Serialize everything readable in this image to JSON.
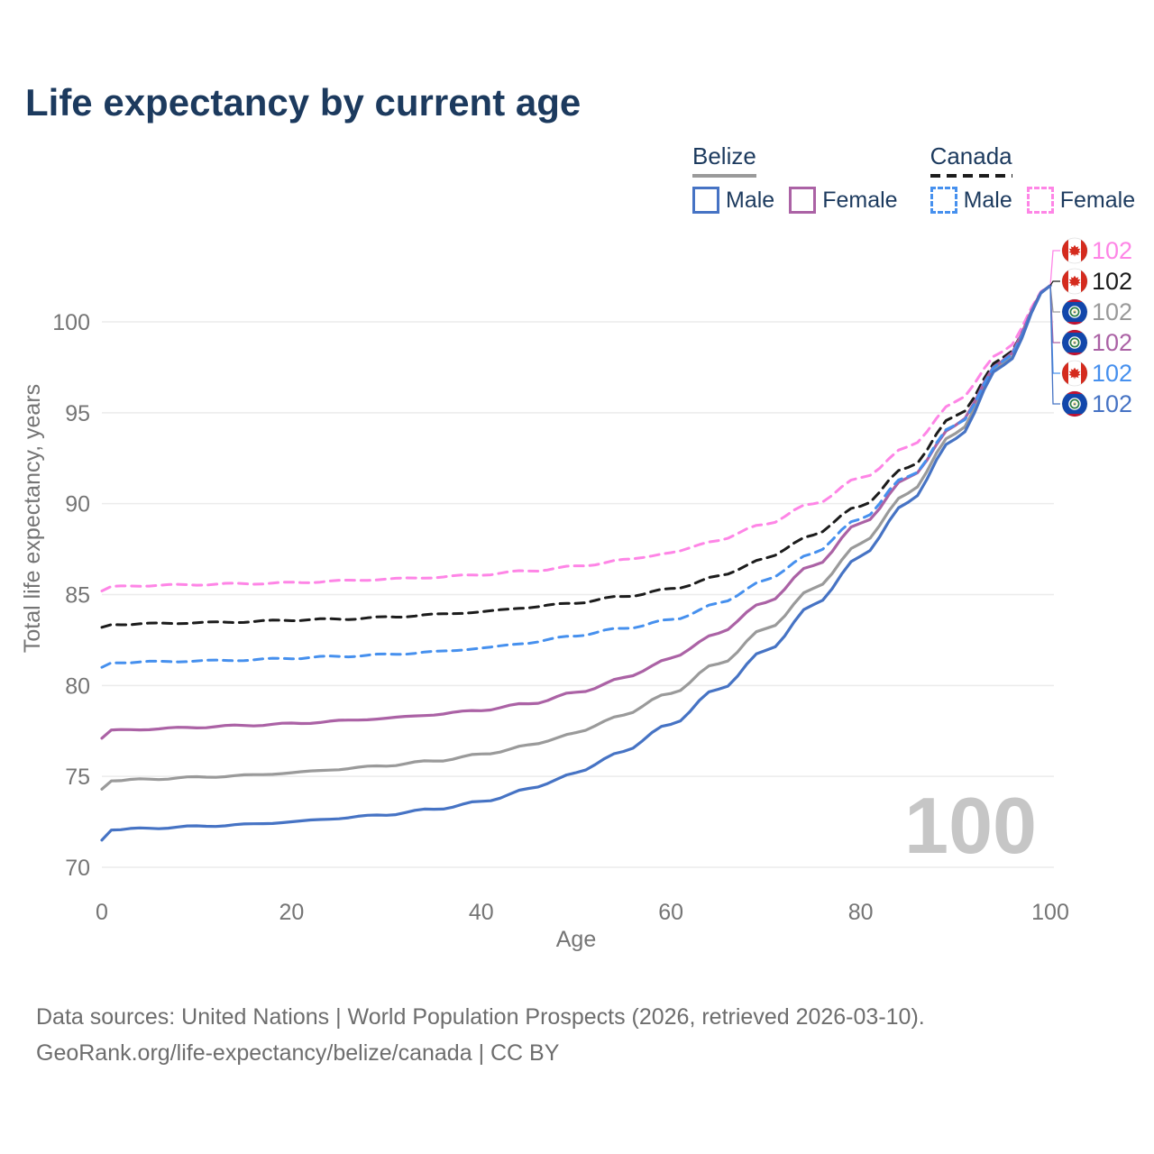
{
  "title": "Life expectancy by current age",
  "legend": {
    "groups": [
      {
        "label": "Belize",
        "color": "#9a9a9a",
        "dashed": false,
        "items": [
          {
            "label": "Male",
            "color": "#4673c4",
            "dashed": false
          },
          {
            "label": "Female",
            "color": "#ab62a5",
            "dashed": false
          }
        ]
      },
      {
        "label": "Canada",
        "color": "#1c1c1c",
        "dashed": true,
        "items": [
          {
            "label": "Male",
            "color": "#4690ee",
            "dashed": true
          },
          {
            "label": "Female",
            "color": "#fe85e6",
            "dashed": true
          }
        ]
      }
    ]
  },
  "watermark": "100",
  "footer": {
    "line1": "Data sources: United Nations | World Population Prospects (2026, retrieved 2026-03-10).",
    "line2": "GeoRank.org/life-expectancy/belize/canada | CC BY"
  },
  "colors": {
    "title": "#1c3a5e",
    "axis_text": "#757575",
    "gridline": "#ebebeb",
    "watermark": "#c6c6c6",
    "footer_text": "#6d6d6d",
    "canada_flag_red": "#d52b1e",
    "belize_flag_blue": "#1247ab",
    "belize_flag_red": "#c8102e",
    "belize_wreath_green": "#2d7d46"
  },
  "chart_data": {
    "type": "line",
    "title": "Life expectancy by current age",
    "xlabel": "Age",
    "ylabel": "Total life expectancy, years",
    "xlim": [
      0,
      100
    ],
    "ylim": [
      70,
      102.5
    ],
    "xticks": [
      0,
      20,
      40,
      60,
      80,
      100
    ],
    "yticks": [
      70,
      75,
      80,
      85,
      90,
      95,
      100
    ],
    "grid": "horizontal-only",
    "legend_position": "top-right",
    "series": [
      {
        "id": "canada-female",
        "name": "Canada Female",
        "country": "Canada",
        "flag": "canada",
        "color": "#fe85e6",
        "dashed": true,
        "end_label": "102",
        "points": [
          [
            0,
            85.2
          ],
          [
            1,
            85.45
          ],
          [
            5,
            85.5
          ],
          [
            10,
            85.55
          ],
          [
            15,
            85.6
          ],
          [
            20,
            85.65
          ],
          [
            25,
            85.75
          ],
          [
            30,
            85.85
          ],
          [
            35,
            85.95
          ],
          [
            40,
            86.1
          ],
          [
            45,
            86.3
          ],
          [
            50,
            86.55
          ],
          [
            55,
            86.9
          ],
          [
            60,
            87.3
          ],
          [
            65,
            88.0
          ],
          [
            70,
            88.9
          ],
          [
            75,
            90.0
          ],
          [
            80,
            91.4
          ],
          [
            85,
            93.1
          ],
          [
            90,
            95.6
          ],
          [
            95,
            98.4
          ],
          [
            100,
            102
          ]
        ]
      },
      {
        "id": "canada-total",
        "name": "Canada (both sexes)",
        "country": "Canada",
        "flag": "canada",
        "color": "#1c1c1c",
        "dashed": true,
        "end_label": "102",
        "points": [
          [
            0,
            83.2
          ],
          [
            1,
            83.35
          ],
          [
            5,
            83.4
          ],
          [
            10,
            83.45
          ],
          [
            15,
            83.5
          ],
          [
            20,
            83.6
          ],
          [
            25,
            83.65
          ],
          [
            30,
            83.75
          ],
          [
            35,
            83.9
          ],
          [
            40,
            84.05
          ],
          [
            45,
            84.3
          ],
          [
            50,
            84.55
          ],
          [
            55,
            84.9
          ],
          [
            60,
            85.3
          ],
          [
            65,
            86.0
          ],
          [
            70,
            87.0
          ],
          [
            75,
            88.3
          ],
          [
            80,
            89.9
          ],
          [
            85,
            92.0
          ],
          [
            90,
            94.8
          ],
          [
            95,
            98.0
          ],
          [
            100,
            102
          ]
        ]
      },
      {
        "id": "belize-total",
        "name": "Belize (both sexes)",
        "country": "Belize",
        "flag": "belize",
        "color": "#9a9a9a",
        "dashed": false,
        "end_label": "102",
        "points": [
          [
            0,
            74.3
          ],
          [
            1,
            74.75
          ],
          [
            5,
            74.85
          ],
          [
            10,
            74.95
          ],
          [
            15,
            75.05
          ],
          [
            20,
            75.2
          ],
          [
            25,
            75.4
          ],
          [
            30,
            75.6
          ],
          [
            35,
            75.85
          ],
          [
            40,
            76.2
          ],
          [
            45,
            76.7
          ],
          [
            50,
            77.4
          ],
          [
            55,
            78.4
          ],
          [
            60,
            79.6
          ],
          [
            65,
            81.2
          ],
          [
            70,
            83.1
          ],
          [
            75,
            85.3
          ],
          [
            80,
            87.8
          ],
          [
            85,
            90.6
          ],
          [
            90,
            93.9
          ],
          [
            95,
            97.7
          ],
          [
            100,
            102
          ]
        ]
      },
      {
        "id": "belize-female",
        "name": "Belize Female",
        "country": "Belize",
        "flag": "belize",
        "color": "#ab62a5",
        "dashed": false,
        "end_label": "102",
        "points": [
          [
            0,
            77.1
          ],
          [
            1,
            77.55
          ],
          [
            5,
            77.6
          ],
          [
            10,
            77.7
          ],
          [
            15,
            77.8
          ],
          [
            20,
            77.9
          ],
          [
            25,
            78.05
          ],
          [
            30,
            78.2
          ],
          [
            35,
            78.4
          ],
          [
            40,
            78.65
          ],
          [
            45,
            79.0
          ],
          [
            50,
            79.6
          ],
          [
            55,
            80.4
          ],
          [
            60,
            81.5
          ],
          [
            65,
            82.9
          ],
          [
            70,
            84.6
          ],
          [
            75,
            86.6
          ],
          [
            80,
            88.9
          ],
          [
            85,
            91.4
          ],
          [
            90,
            94.3
          ],
          [
            95,
            97.9
          ],
          [
            100,
            102
          ]
        ]
      },
      {
        "id": "canada-male",
        "name": "Canada Male",
        "country": "Canada",
        "flag": "canada",
        "color": "#4690ee",
        "dashed": true,
        "end_label": "102",
        "points": [
          [
            0,
            81.0
          ],
          [
            1,
            81.25
          ],
          [
            5,
            81.3
          ],
          [
            10,
            81.35
          ],
          [
            15,
            81.4
          ],
          [
            20,
            81.5
          ],
          [
            25,
            81.6
          ],
          [
            30,
            81.7
          ],
          [
            35,
            81.85
          ],
          [
            40,
            82.05
          ],
          [
            45,
            82.35
          ],
          [
            50,
            82.75
          ],
          [
            55,
            83.15
          ],
          [
            60,
            83.6
          ],
          [
            65,
            84.5
          ],
          [
            70,
            85.8
          ],
          [
            75,
            87.3
          ],
          [
            80,
            89.2
          ],
          [
            85,
            91.5
          ],
          [
            90,
            94.3
          ],
          [
            95,
            97.8
          ],
          [
            100,
            102
          ]
        ]
      },
      {
        "id": "belize-male",
        "name": "Belize Male",
        "country": "Belize",
        "flag": "belize",
        "color": "#4673c4",
        "dashed": false,
        "end_label": "102",
        "points": [
          [
            0,
            71.5
          ],
          [
            1,
            72.05
          ],
          [
            5,
            72.15
          ],
          [
            10,
            72.25
          ],
          [
            15,
            72.35
          ],
          [
            20,
            72.5
          ],
          [
            25,
            72.7
          ],
          [
            30,
            72.9
          ],
          [
            35,
            73.2
          ],
          [
            40,
            73.6
          ],
          [
            45,
            74.3
          ],
          [
            50,
            75.2
          ],
          [
            55,
            76.4
          ],
          [
            60,
            77.9
          ],
          [
            65,
            79.8
          ],
          [
            70,
            81.9
          ],
          [
            75,
            84.4
          ],
          [
            80,
            87.1
          ],
          [
            85,
            90.1
          ],
          [
            90,
            93.6
          ],
          [
            95,
            97.6
          ],
          [
            100,
            102
          ]
        ]
      }
    ]
  }
}
